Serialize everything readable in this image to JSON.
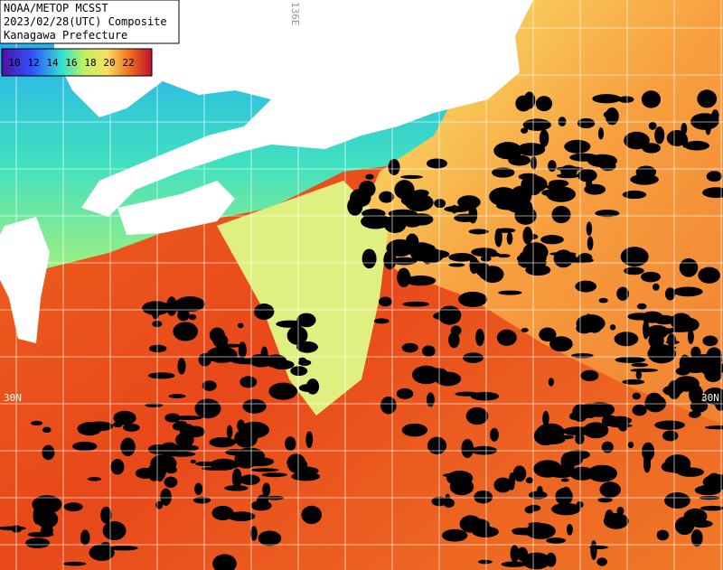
{
  "header": {
    "lines": [
      "NOAA/METOP MCSST",
      "2023/02/28(UTC) Composite",
      "Kanagawa Prefecture"
    ]
  },
  "legend": {
    "ticks": [
      10,
      12,
      14,
      16,
      18,
      20,
      22
    ]
  },
  "grid_labels": {
    "lat_left": "30N",
    "lat_right": "30N",
    "lon_top": "136E"
  }
}
